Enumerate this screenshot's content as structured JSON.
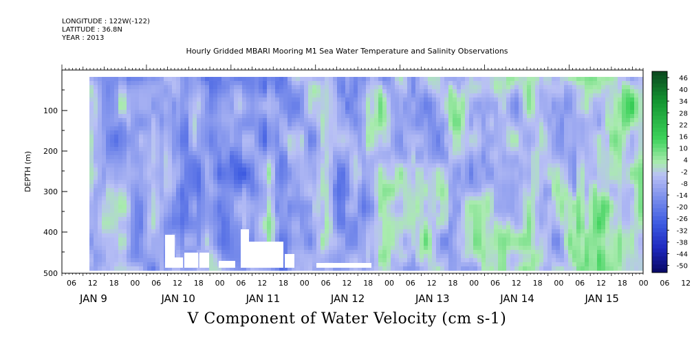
{
  "header": {
    "longitude": "LONGITUDE : 122W(-122)",
    "latitude": "LATITUDE : 36.8N",
    "year": "YEAR : 2013"
  },
  "chart_data": {
    "type": "heatmap",
    "title": "Hourly Gridded MBARI Mooring M1 Sea Water Temperature and Salinity Observations",
    "subtitle": "V Component of Water Velocity (cm s-1)",
    "ylabel": "DEPTH (m)",
    "ylim": [
      500,
      0
    ],
    "y_axis_inverted": true,
    "y_ticks": [
      100,
      200,
      300,
      400,
      500
    ],
    "x_hour_ticks": [
      "06",
      "12",
      "18",
      "00",
      "06",
      "12",
      "18",
      "00",
      "06",
      "12",
      "18",
      "00",
      "06",
      "12",
      "18",
      "00",
      "06",
      "12",
      "18",
      "00",
      "06",
      "12",
      "18",
      "00",
      "06",
      "12",
      "18",
      "00",
      "06",
      "12",
      "18"
    ],
    "x_day_labels": [
      "JAN  9",
      "JAN 10",
      "JAN 11",
      "JAN 12",
      "JAN 13",
      "JAN 14",
      "JAN 15"
    ],
    "colorbar": {
      "labels": [
        "46",
        "40",
        "34",
        "28",
        "22",
        "16",
        "10",
        "4",
        "-2",
        "-8",
        "-14",
        "-20",
        "-26",
        "-32",
        "-38",
        "-44",
        "-50"
      ],
      "range": [
        -50,
        49
      ]
    },
    "colors": {
      "negative_dark": "#0a0a6e",
      "negative_mid": "#3a55d8",
      "negative_light": "#aab4f0",
      "neutral": "#c8cdf5",
      "positive_light": "#9ff0a6",
      "positive_mid": "#1fbf3a",
      "positive_dark": "#0a4a1e"
    }
  }
}
